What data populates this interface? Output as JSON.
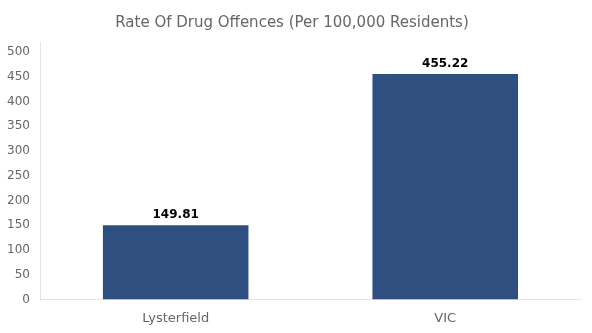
{
  "chart_data": {
    "type": "bar",
    "title": "Rate Of Drug Offences (Per 100,000 Residents)",
    "categories": [
      "Lysterfield",
      "VIC"
    ],
    "values": [
      149.81,
      455.22
    ],
    "color": "#2e4f80",
    "ylim": [
      0,
      520
    ],
    "yticks": [
      0,
      50,
      100,
      150,
      200,
      250,
      300,
      350,
      400,
      450,
      500
    ],
    "grid": false,
    "data_labels": true
  }
}
